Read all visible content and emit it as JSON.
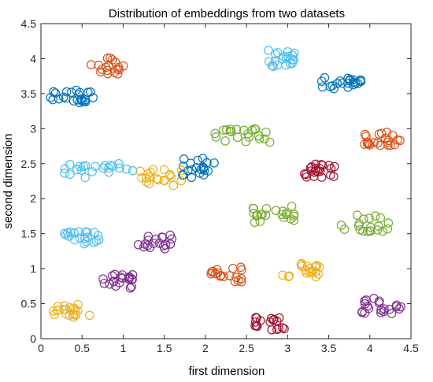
{
  "chart_data": {
    "type": "scatter",
    "title": "Distribution of embeddings from two datasets",
    "xlabel": "first dimension",
    "ylabel": "second dimension",
    "xlim": [
      0,
      4.5
    ],
    "ylim": [
      0,
      4.5
    ],
    "xticks": [
      "0",
      "0.5",
      "1",
      "1.5",
      "2",
      "2.5",
      "3",
      "3.5",
      "4",
      "4.5"
    ],
    "yticks": [
      "0",
      "0.5",
      "1",
      "1.5",
      "2",
      "2.5",
      "3",
      "3.5",
      "4",
      "4.5"
    ],
    "grid": false,
    "marker": "open circle",
    "colors": {
      "blue": "#0072BD",
      "orange": "#D95319",
      "yellow": "#EDB120",
      "purple": "#7E2F8E",
      "green": "#77AC30",
      "cyan": "#4DBEEE",
      "red": "#A2142F"
    },
    "clusters": [
      {
        "color": "blue",
        "cx": 0.35,
        "cy": 3.45,
        "sx": 0.3,
        "sy": 0.1,
        "n": 24
      },
      {
        "color": "orange",
        "cx": 0.85,
        "cy": 3.9,
        "sx": 0.25,
        "sy": 0.12,
        "n": 18
      },
      {
        "color": "cyan",
        "cx": 0.7,
        "cy": 2.4,
        "sx": 0.42,
        "sy": 0.1,
        "n": 22
      },
      {
        "color": "blue",
        "cx": 1.9,
        "cy": 2.45,
        "sx": 0.22,
        "sy": 0.15,
        "n": 20
      },
      {
        "color": "yellow",
        "cx": 1.45,
        "cy": 2.3,
        "sx": 0.3,
        "sy": 0.12,
        "n": 20
      },
      {
        "color": "green",
        "cx": 2.45,
        "cy": 2.9,
        "sx": 0.35,
        "sy": 0.1,
        "n": 22
      },
      {
        "color": "cyan",
        "cx": 2.95,
        "cy": 4.0,
        "sx": 0.2,
        "sy": 0.12,
        "n": 20
      },
      {
        "color": "blue",
        "cx": 3.65,
        "cy": 3.65,
        "sx": 0.25,
        "sy": 0.08,
        "n": 22
      },
      {
        "color": "orange",
        "cx": 4.15,
        "cy": 2.85,
        "sx": 0.22,
        "sy": 0.1,
        "n": 22
      },
      {
        "color": "red",
        "cx": 3.4,
        "cy": 2.4,
        "sx": 0.2,
        "sy": 0.1,
        "n": 22
      },
      {
        "color": "green",
        "cx": 2.8,
        "cy": 1.78,
        "sx": 0.3,
        "sy": 0.12,
        "n": 22
      },
      {
        "color": "green",
        "cx": 3.95,
        "cy": 1.65,
        "sx": 0.3,
        "sy": 0.12,
        "n": 20
      },
      {
        "color": "cyan",
        "cx": 0.5,
        "cy": 1.45,
        "sx": 0.25,
        "sy": 0.1,
        "n": 20
      },
      {
        "color": "purple",
        "cx": 1.4,
        "cy": 1.38,
        "sx": 0.22,
        "sy": 0.1,
        "n": 18
      },
      {
        "color": "purple",
        "cx": 0.9,
        "cy": 0.82,
        "sx": 0.22,
        "sy": 0.1,
        "n": 20
      },
      {
        "color": "orange",
        "cx": 2.25,
        "cy": 0.92,
        "sx": 0.22,
        "sy": 0.12,
        "n": 18
      },
      {
        "color": "yellow",
        "cx": 3.15,
        "cy": 0.98,
        "sx": 0.25,
        "sy": 0.1,
        "n": 20
      },
      {
        "color": "yellow",
        "cx": 0.4,
        "cy": 0.4,
        "sx": 0.25,
        "sy": 0.1,
        "n": 20
      },
      {
        "color": "red",
        "cx": 2.8,
        "cy": 0.22,
        "sx": 0.2,
        "sy": 0.1,
        "n": 18
      },
      {
        "color": "purple",
        "cx": 4.15,
        "cy": 0.48,
        "sx": 0.25,
        "sy": 0.12,
        "n": 22
      }
    ]
  }
}
